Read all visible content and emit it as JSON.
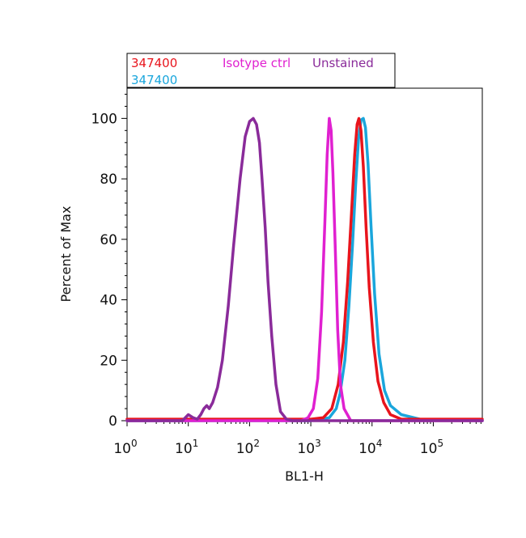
{
  "chart_data": {
    "type": "line",
    "xlabel": "BL1-H",
    "ylabel": "Percent of Max",
    "x_scale": "log",
    "xlim": [
      1,
      630957
    ],
    "ylim": [
      0,
      110
    ],
    "x_ticks": [
      {
        "value": 1,
        "base": "10",
        "exp": "0"
      },
      {
        "value": 10,
        "base": "10",
        "exp": "1"
      },
      {
        "value": 100,
        "base": "10",
        "exp": "2"
      },
      {
        "value": 1000,
        "base": "10",
        "exp": "3"
      },
      {
        "value": 10000,
        "base": "10",
        "exp": "4"
      },
      {
        "value": 100000,
        "base": "10",
        "exp": "5"
      }
    ],
    "y_ticks": [
      0,
      20,
      40,
      60,
      80,
      100
    ],
    "grid": false,
    "legend": {
      "placement": "top",
      "entries": [
        {
          "name": "347400",
          "color": "#e8141c"
        },
        {
          "name": "Isotype ctrl",
          "color": "#e020d0"
        },
        {
          "name": "Unstained",
          "color": "#8a2b9a"
        },
        {
          "name": "347400",
          "color": "#1aa6dc"
        }
      ]
    },
    "series": [
      {
        "color": "#1aa6dc",
        "x": [
          1,
          1000,
          2000,
          2600,
          3000,
          3600,
          4200,
          4800,
          5400,
          6000,
          6600,
          7200,
          7800,
          8600,
          9600,
          11000,
          13000,
          16000,
          20000,
          30000,
          60000,
          630957
        ],
        "y": [
          0,
          0,
          1,
          4,
          9,
          20,
          38,
          58,
          78,
          93,
          99.5,
          100,
          97,
          85,
          65,
          42,
          22,
          10,
          5,
          2,
          0.5,
          0
        ]
      },
      {
        "color": "#e8141c",
        "x": [
          1,
          1000,
          1600,
          2200,
          2800,
          3400,
          4000,
          4600,
          5200,
          5700,
          6100,
          6600,
          7200,
          8000,
          9000,
          10500,
          12500,
          15500,
          20000,
          30000,
          630957
        ],
        "y": [
          0.5,
          0.5,
          1,
          4,
          12,
          26,
          46,
          68,
          88,
          98,
          100,
          96,
          84,
          64,
          44,
          26,
          13,
          6,
          2,
          0.5,
          0.5
        ]
      },
      {
        "color": "#e020d0",
        "x": [
          1,
          700,
          900,
          1100,
          1300,
          1500,
          1700,
          1850,
          2000,
          2150,
          2300,
          2500,
          2750,
          3050,
          3500,
          4500,
          630957
        ],
        "y": [
          0,
          0,
          1,
          4,
          14,
          36,
          66,
          88,
          100,
          96,
          82,
          58,
          30,
          12,
          4,
          0,
          0
        ]
      },
      {
        "color": "#8a2b9a",
        "x": [
          1,
          8,
          10,
          12,
          14,
          16,
          18,
          20,
          22,
          25,
          30,
          36,
          45,
          55,
          70,
          85,
          100,
          115,
          130,
          145,
          160,
          180,
          200,
          230,
          270,
          320,
          400,
          500,
          700,
          630957
        ],
        "y": [
          0,
          0,
          2,
          1,
          0.5,
          2,
          4,
          5,
          4,
          6,
          11,
          20,
          38,
          58,
          80,
          94,
          99,
          100,
          98,
          92,
          80,
          64,
          46,
          28,
          12,
          3,
          0.5,
          0,
          0,
          0
        ]
      }
    ]
  }
}
